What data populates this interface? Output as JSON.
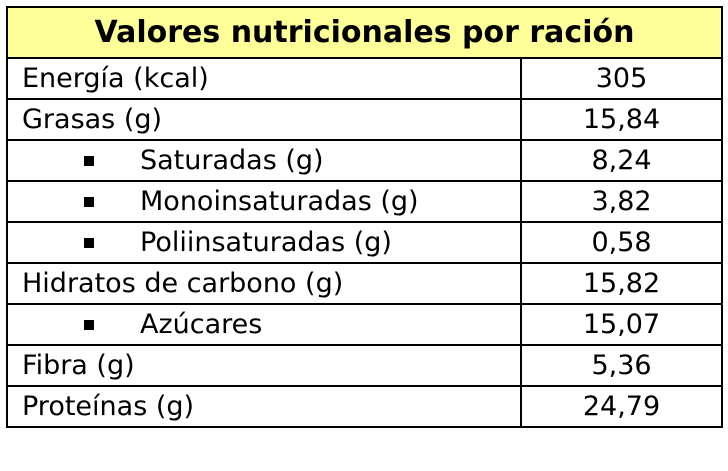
{
  "table": {
    "title": "Valores nutricionales por ración",
    "title_bg": "#ffff99",
    "rows": [
      {
        "label": "Energía (kcal)",
        "value": "305",
        "sub": false
      },
      {
        "label": "Grasas (g)",
        "value": "15,84",
        "sub": false
      },
      {
        "label": "Saturadas (g)",
        "value": "8,24",
        "sub": true
      },
      {
        "label": "Monoinsaturadas (g)",
        "value": "3,82",
        "sub": true
      },
      {
        "label": "Poliinsaturadas (g)",
        "value": "0,58",
        "sub": true
      },
      {
        "label": "Hidratos de carbono (g)",
        "value": "15,82",
        "sub": false
      },
      {
        "label": "Azúcares",
        "value": "15,07",
        "sub": true
      },
      {
        "label": "Fibra (g)",
        "value": "5,36",
        "sub": false
      },
      {
        "label": "Proteínas (g)",
        "value": "24,79",
        "sub": false
      }
    ]
  }
}
